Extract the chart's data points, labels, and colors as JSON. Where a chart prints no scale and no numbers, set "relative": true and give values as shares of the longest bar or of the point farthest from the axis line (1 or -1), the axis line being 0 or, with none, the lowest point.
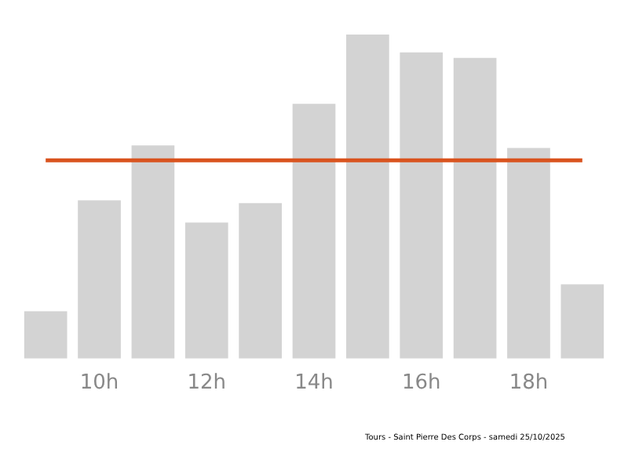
{
  "chart_data": {
    "type": "bar",
    "relative": true,
    "categories": [
      null,
      "10h",
      null,
      "12h",
      null,
      "14h",
      null,
      "16h",
      null,
      "18h",
      null
    ],
    "values": [
      0.146,
      0.488,
      0.658,
      0.42,
      0.48,
      0.786,
      1,
      0.945,
      0.928,
      0.65,
      0.229
    ],
    "color": "#d3d3d3",
    "ref_lines": [
      {
        "axis": "y",
        "value": 0.612,
        "color": "#d9531e"
      }
    ],
    "grid": false,
    "legend": false,
    "annotations": [
      "Tours - Saint Pierre Des Corps - samedi 25/10/2025"
    ]
  }
}
